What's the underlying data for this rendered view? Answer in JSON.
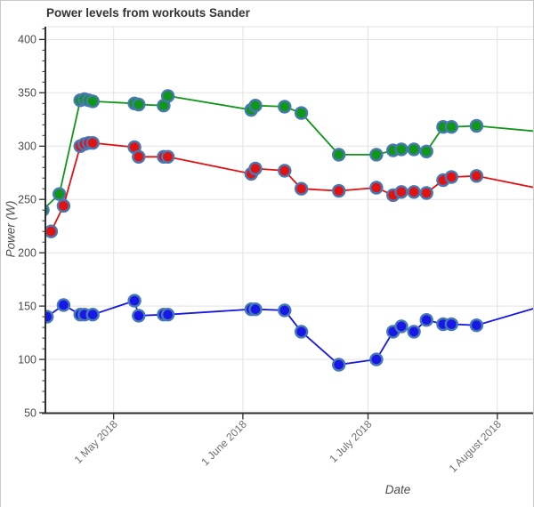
{
  "chart_data": {
    "type": "line",
    "title": "Power levels from workouts Sander",
    "xlabel": "Date",
    "ylabel": "Power (W)",
    "x_range": [
      "2018-04-14",
      "2018-08-10"
    ],
    "ylim": [
      50,
      412
    ],
    "grid": true,
    "legend": "none",
    "y_major_ticks": [
      50,
      100,
      150,
      200,
      250,
      300,
      350,
      400
    ],
    "y_minor_tick_step": 10,
    "x_ticks": [
      {
        "date": "2018-05-01",
        "label": "1 May 2018"
      },
      {
        "date": "2018-06-01",
        "label": "1 June 2018"
      },
      {
        "date": "2018-07-01",
        "label": "1 July 2018"
      },
      {
        "date": "2018-08-01",
        "label": "1 August 2018"
      }
    ],
    "colors": {
      "grid": "#e3e3e3",
      "axis": "#2e2e2e",
      "marker_outline": "#4779b4",
      "title": "#333333",
      "y_tick_label": "#4a4a4a",
      "x_tick_label": "#707070"
    },
    "series": [
      {
        "name": "green",
        "color": "#109618",
        "points": [
          [
            "2018-04-14",
            240
          ],
          [
            "2018-04-18",
            255
          ],
          [
            "2018-04-23",
            343
          ],
          [
            "2018-04-24",
            344
          ],
          [
            "2018-04-25",
            343
          ],
          [
            "2018-04-26",
            342
          ],
          [
            "2018-05-06",
            340
          ],
          [
            "2018-05-07",
            339
          ],
          [
            "2018-05-13",
            338
          ],
          [
            "2018-05-14",
            347
          ],
          [
            "2018-06-03",
            334
          ],
          [
            "2018-06-04",
            338
          ],
          [
            "2018-06-11",
            337
          ],
          [
            "2018-06-15",
            331
          ],
          [
            "2018-06-24",
            292
          ],
          [
            "2018-07-03",
            292
          ],
          [
            "2018-07-07",
            296
          ],
          [
            "2018-07-09",
            297
          ],
          [
            "2018-07-12",
            297
          ],
          [
            "2018-07-15",
            295
          ],
          [
            "2018-07-19",
            318
          ],
          [
            "2018-07-21",
            318
          ],
          [
            "2018-07-27",
            319
          ]
        ],
        "continues_to": {
          "date": "2018-08-10",
          "value": 314
        }
      },
      {
        "name": "red",
        "color": "#e11212",
        "points": [
          [
            "2018-04-16",
            220
          ],
          [
            "2018-04-19",
            244
          ],
          [
            "2018-04-23",
            300
          ],
          [
            "2018-04-24",
            302
          ],
          [
            "2018-04-25",
            303
          ],
          [
            "2018-04-26",
            303
          ],
          [
            "2018-05-06",
            299
          ],
          [
            "2018-05-07",
            290
          ],
          [
            "2018-05-13",
            290
          ],
          [
            "2018-05-14",
            290
          ],
          [
            "2018-06-03",
            274
          ],
          [
            "2018-06-04",
            279
          ],
          [
            "2018-06-11",
            277
          ],
          [
            "2018-06-15",
            260
          ],
          [
            "2018-06-24",
            258
          ],
          [
            "2018-07-03",
            261
          ],
          [
            "2018-07-07",
            254
          ],
          [
            "2018-07-09",
            257
          ],
          [
            "2018-07-12",
            257
          ],
          [
            "2018-07-15",
            256
          ],
          [
            "2018-07-19",
            268
          ],
          [
            "2018-07-21",
            271
          ],
          [
            "2018-07-27",
            272
          ]
        ],
        "continues_to": {
          "date": "2018-08-10",
          "value": 261
        }
      },
      {
        "name": "blue",
        "color": "#1717e8",
        "points": [
          [
            "2018-04-15",
            140
          ],
          [
            "2018-04-19",
            151
          ],
          [
            "2018-04-23",
            142
          ],
          [
            "2018-04-24",
            142
          ],
          [
            "2018-04-26",
            142
          ],
          [
            "2018-05-06",
            155
          ],
          [
            "2018-05-07",
            141
          ],
          [
            "2018-05-13",
            142
          ],
          [
            "2018-05-14",
            142
          ],
          [
            "2018-06-03",
            147
          ],
          [
            "2018-06-04",
            147
          ],
          [
            "2018-06-11",
            146
          ],
          [
            "2018-06-15",
            126
          ],
          [
            "2018-06-24",
            95
          ],
          [
            "2018-07-03",
            100
          ],
          [
            "2018-07-07",
            126
          ],
          [
            "2018-07-09",
            131
          ],
          [
            "2018-07-12",
            126
          ],
          [
            "2018-07-15",
            137
          ],
          [
            "2018-07-19",
            133
          ],
          [
            "2018-07-21",
            133
          ],
          [
            "2018-07-27",
            132
          ]
        ],
        "continues_to": {
          "date": "2018-08-10",
          "value": 148
        }
      }
    ]
  }
}
